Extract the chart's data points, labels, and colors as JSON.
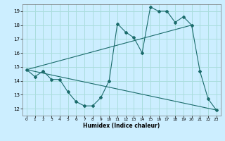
{
  "xlabel": "Humidex (Indice chaleur)",
  "background_color": "#cceeff",
  "grid_color": "#aadddd",
  "line_color": "#1a6b6b",
  "xlim": [
    -0.5,
    23.5
  ],
  "ylim": [
    11.5,
    19.5
  ],
  "yticks": [
    12,
    13,
    14,
    15,
    16,
    17,
    18,
    19
  ],
  "xticks": [
    0,
    1,
    2,
    3,
    4,
    5,
    6,
    7,
    8,
    9,
    10,
    11,
    12,
    13,
    14,
    15,
    16,
    17,
    18,
    19,
    20,
    21,
    22,
    23
  ],
  "series": [
    [
      0,
      14.8
    ],
    [
      1,
      14.3
    ],
    [
      2,
      14.7
    ],
    [
      3,
      14.1
    ],
    [
      4,
      14.1
    ],
    [
      5,
      13.2
    ],
    [
      6,
      12.5
    ],
    [
      7,
      12.2
    ],
    [
      8,
      12.2
    ],
    [
      9,
      12.8
    ],
    [
      10,
      14.0
    ],
    [
      11,
      18.1
    ],
    [
      12,
      17.5
    ],
    [
      13,
      17.1
    ],
    [
      14,
      16.0
    ],
    [
      15,
      19.3
    ],
    [
      16,
      19.0
    ],
    [
      17,
      19.0
    ],
    [
      18,
      18.2
    ],
    [
      19,
      18.6
    ],
    [
      20,
      18.0
    ],
    [
      21,
      14.7
    ],
    [
      22,
      12.7
    ],
    [
      23,
      11.9
    ]
  ],
  "line2": [
    [
      0,
      14.8
    ],
    [
      20,
      18.0
    ]
  ],
  "line3": [
    [
      0,
      14.8
    ],
    [
      23,
      11.9
    ]
  ]
}
